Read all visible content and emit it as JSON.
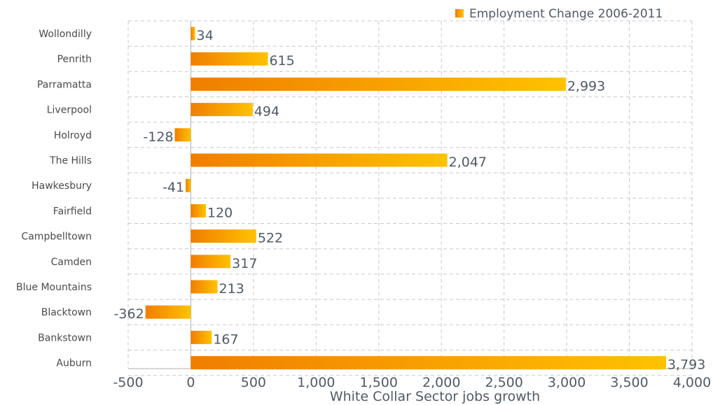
{
  "chart_data": {
    "type": "bar",
    "orientation": "horizontal",
    "categories": [
      "Wollondilly",
      "Penrith",
      "Parramatta",
      "Liverpool",
      "Holroyd",
      "The Hills",
      "Hawkesbury",
      "Fairfield",
      "Campbelltown",
      "Camden",
      "Blue Mountains",
      "Blacktown",
      "Bankstown",
      "Auburn"
    ],
    "values": [
      34,
      615,
      2993,
      494,
      -128,
      2047,
      -41,
      120,
      522,
      317,
      213,
      -362,
      167,
      3793
    ],
    "value_labels": [
      "34",
      "615",
      "2,993",
      "494",
      "-128",
      "2,047",
      "-41",
      "120",
      "522",
      "317",
      "213",
      "-362",
      "167",
      "3,793"
    ],
    "xlim": [
      -500,
      4000
    ],
    "x_ticks": [
      -500,
      0,
      500,
      1000,
      1500,
      2000,
      2500,
      3000,
      3500,
      4000
    ],
    "x_tick_labels": [
      "-500",
      "0",
      "500",
      "1,000",
      "1,500",
      "2,000",
      "2,500",
      "3,000",
      "3,500",
      "4,000"
    ],
    "xlabel": "White Collar Sector jobs growth",
    "ylabel": "",
    "title": "",
    "grid": true,
    "legend": {
      "position": "top-right",
      "entries": [
        "Employment Change 2006-2011"
      ]
    },
    "series": [
      {
        "name": "Employment Change 2006-2011",
        "values": [
          34,
          615,
          2993,
          494,
          -128,
          2047,
          -41,
          120,
          522,
          317,
          213,
          -362,
          167,
          3793
        ]
      }
    ],
    "colors": {
      "bar_start": "#f07e00",
      "bar_end": "#ffc200",
      "grid": "#c8c8c8",
      "text": "#505a66"
    }
  }
}
